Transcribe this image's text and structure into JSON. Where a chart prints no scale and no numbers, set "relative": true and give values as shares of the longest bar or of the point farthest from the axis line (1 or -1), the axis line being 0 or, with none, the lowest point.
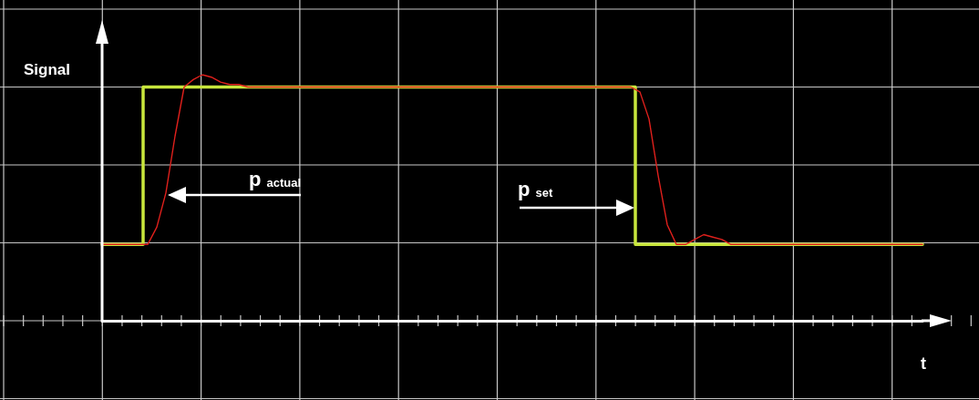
{
  "chart_data": {
    "type": "line",
    "relative": true,
    "xlabel": "t",
    "ylabel": "Signal",
    "grid": true,
    "marker": "none",
    "line_style": "solid",
    "categories": [
      null,
      null,
      null,
      null,
      null,
      null,
      null,
      null,
      null,
      null,
      null,
      null,
      null,
      null,
      null,
      null,
      null,
      null,
      null,
      null,
      null,
      null,
      null,
      null,
      null,
      null,
      null,
      null,
      null,
      null,
      null,
      null,
      null,
      null,
      null,
      null,
      null,
      null,
      null,
      null,
      null,
      null,
      null,
      null,
      null,
      null,
      null,
      null,
      null,
      null,
      null,
      null,
      null,
      null,
      null,
      null,
      null,
      null,
      null,
      null,
      null,
      null,
      null,
      null,
      null,
      null,
      null,
      null,
      null,
      null,
      null,
      null,
      null,
      null,
      null,
      null,
      null,
      null,
      null,
      null,
      null,
      null,
      null,
      null,
      null,
      null,
      null,
      null,
      null,
      null,
      null
    ],
    "series": [
      {
        "type": "step",
        "color": "#c8e63c",
        "values": [
          0.31,
          0.31,
          0.31,
          0.31,
          0.31,
          0.95,
          0.95,
          0.95,
          0.95,
          0.95,
          0.95,
          0.95,
          0.95,
          0.95,
          0.95,
          0.95,
          0.95,
          0.95,
          0.95,
          0.95,
          0.95,
          0.95,
          0.95,
          0.95,
          0.95,
          0.95,
          0.95,
          0.95,
          0.95,
          0.95,
          0.95,
          0.95,
          0.95,
          0.95,
          0.95,
          0.95,
          0.95,
          0.95,
          0.95,
          0.95,
          0.95,
          0.95,
          0.95,
          0.95,
          0.95,
          0.95,
          0.95,
          0.95,
          0.95,
          0.95,
          0.95,
          0.95,
          0.95,
          0.95,
          0.95,
          0.95,
          0.95,
          0.95,
          0.95,
          0.31,
          0.31,
          0.31,
          0.31,
          0.31,
          0.31,
          0.31,
          0.31,
          0.31,
          0.31,
          0.31,
          0.31,
          0.31,
          0.31,
          0.31,
          0.31,
          0.31,
          0.31,
          0.31,
          0.31,
          0.31,
          0.31,
          0.31,
          0.31,
          0.31,
          0.31,
          0.31,
          0.31,
          0.31,
          0.31,
          0.31,
          0.31
        ]
      },
      {
        "color": "#e0201c",
        "values": [
          0.31,
          0.31,
          0.31,
          0.31,
          0.31,
          0.31,
          0.38,
          0.52,
          0.75,
          0.95,
          0.98,
          1,
          0.99,
          0.97,
          0.96,
          0.96,
          0.95,
          0.95,
          0.95,
          0.95,
          0.95,
          0.95,
          0.95,
          0.95,
          0.95,
          0.95,
          0.95,
          0.95,
          0.95,
          0.95,
          0.95,
          0.95,
          0.95,
          0.95,
          0.95,
          0.95,
          0.95,
          0.95,
          0.95,
          0.95,
          0.95,
          0.95,
          0.95,
          0.95,
          0.95,
          0.95,
          0.95,
          0.95,
          0.95,
          0.95,
          0.95,
          0.95,
          0.95,
          0.95,
          0.95,
          0.95,
          0.95,
          0.95,
          0.95,
          0.93,
          0.82,
          0.59,
          0.39,
          0.31,
          0.31,
          0.33,
          0.35,
          0.34,
          0.33,
          0.31,
          0.31,
          0.31,
          0.31,
          0.31,
          0.31,
          0.31,
          0.31,
          0.31,
          0.31,
          0.31,
          0.31,
          0.31,
          0.31,
          0.31,
          0.31,
          0.31,
          0.31,
          0.31,
          0.31,
          0.31,
          0.31
        ]
      }
    ],
    "annotations": [
      "p$_{actual}$",
      "p$_{set}$"
    ]
  }
}
